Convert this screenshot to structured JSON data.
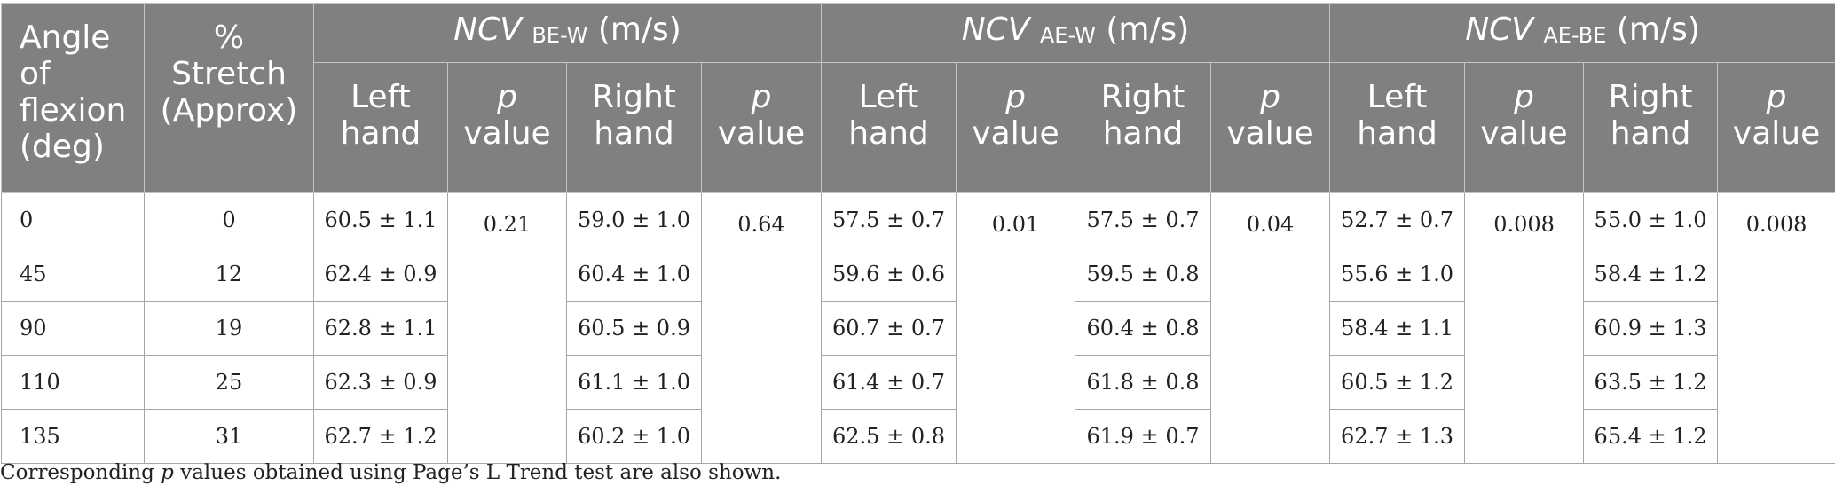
{
  "header": {
    "angle": [
      "Angle",
      "of",
      "flexion",
      "(deg)"
    ],
    "stretch": [
      "%",
      "Stretch",
      "(Approx)"
    ],
    "groups": [
      {
        "name": "NCV",
        "sub": "BE-W",
        "unit": "(m/s)"
      },
      {
        "name": "NCV",
        "sub": "AE-W",
        "unit": "(m/s)"
      },
      {
        "name": "NCV",
        "sub": "AE-BE",
        "unit": "(m/s)"
      }
    ],
    "left_hand": [
      "Left",
      "hand"
    ],
    "right_hand": [
      "Right",
      "hand"
    ],
    "p_value": [
      "p",
      "value"
    ]
  },
  "rows": [
    {
      "angle": "0",
      "stretch": "0",
      "vals": [
        "60.5 ± 1.1",
        "59.0 ± 1.0",
        "57.5 ± 0.7",
        "57.5 ± 0.7",
        "52.7 ± 0.7",
        "55.0 ± 1.0"
      ]
    },
    {
      "angle": "45",
      "stretch": "12",
      "vals": [
        "62.4 ± 0.9",
        "60.4 ± 1.0",
        "59.6 ± 0.6",
        "59.5 ± 0.8",
        "55.6 ± 1.0",
        "58.4 ± 1.2"
      ]
    },
    {
      "angle": "90",
      "stretch": "19",
      "vals": [
        "62.8 ± 1.1",
        "60.5 ± 0.9",
        "60.7 ± 0.7",
        "60.4 ± 0.8",
        "58.4 ± 1.1",
        "60.9 ± 1.3"
      ]
    },
    {
      "angle": "110",
      "stretch": "25",
      "vals": [
        "62.3 ± 0.9",
        "61.1 ± 1.0",
        "61.4 ± 0.7",
        "61.8 ± 0.8",
        "60.5 ± 1.2",
        "63.5 ± 1.2"
      ]
    },
    {
      "angle": "135",
      "stretch": "31",
      "vals": [
        "62.7 ± 1.2",
        "60.2 ± 1.0",
        "62.5 ± 0.8",
        "61.9 ± 0.7",
        "62.7 ± 1.3",
        "65.4 ± 1.2"
      ]
    }
  ],
  "p_values": [
    "0.21",
    "0.64",
    "0.01",
    "0.04",
    "0.008",
    "0.008"
  ],
  "footnote": {
    "pre": "Corresponding ",
    "p": "p",
    "post": " values obtained using Page’s L Trend test are also shown."
  }
}
